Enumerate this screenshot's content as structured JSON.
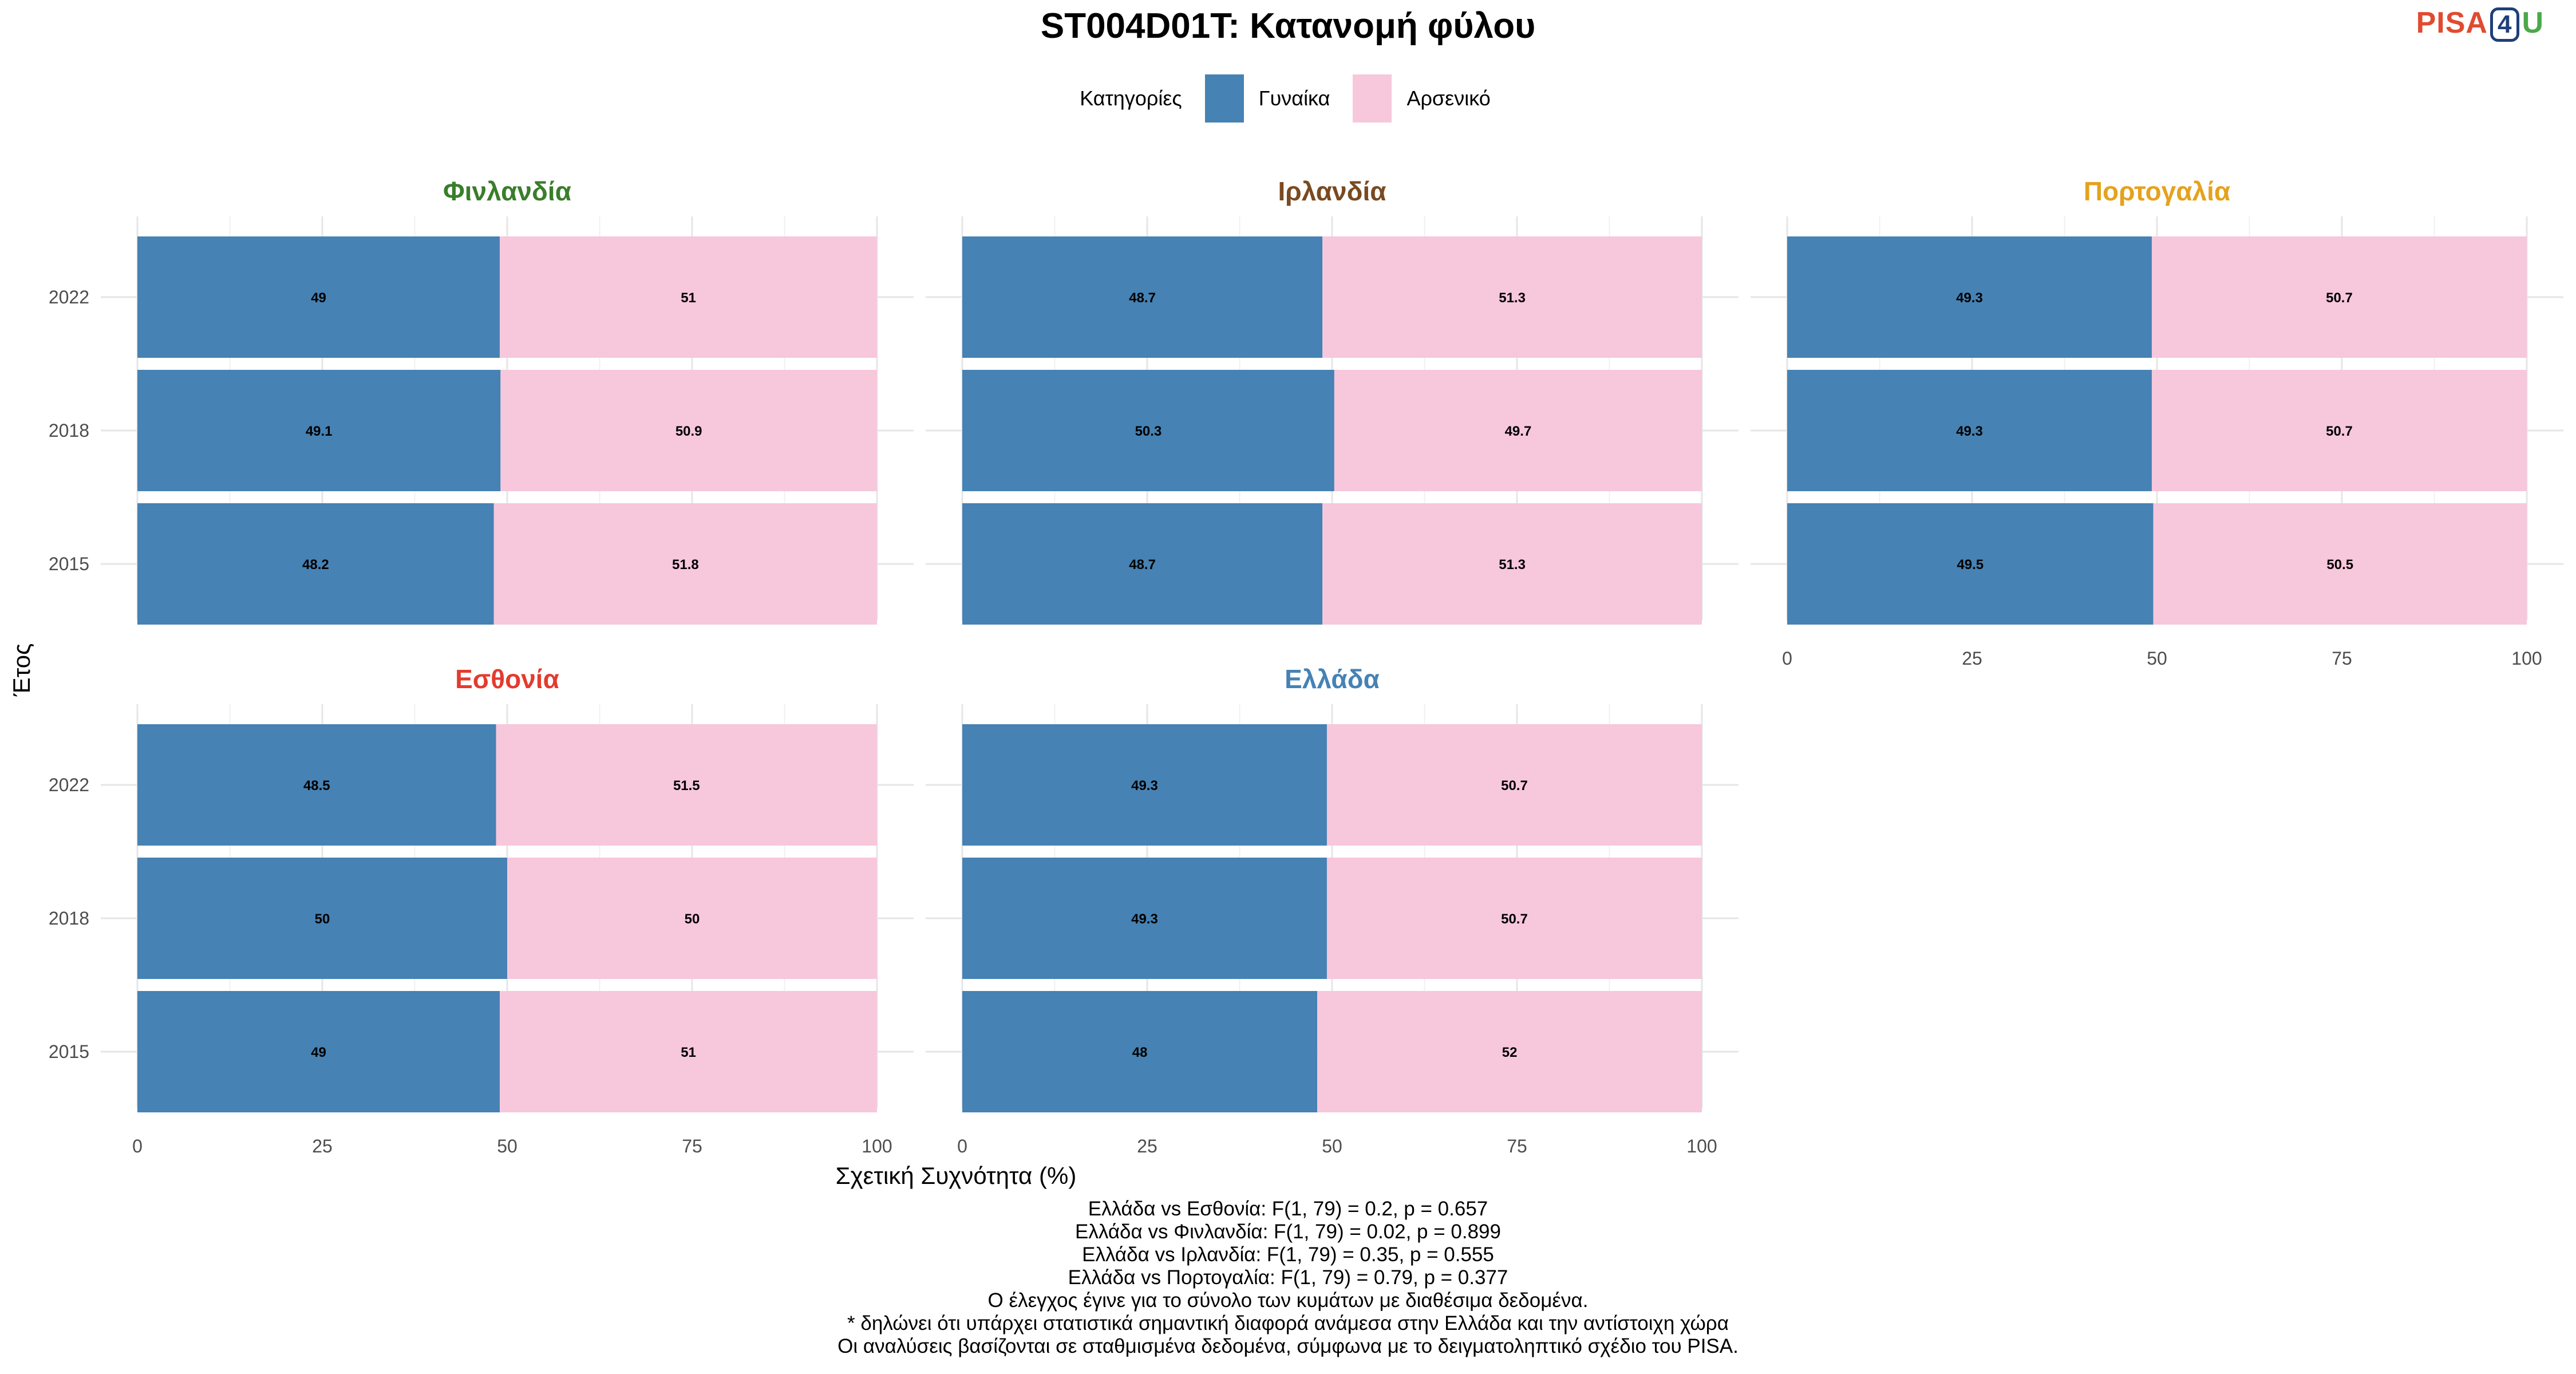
{
  "title": "ST004D01T: Κατανομή φύλου",
  "logo": {
    "part1": "PISA",
    "part2": "4",
    "part3": "U"
  },
  "legend": {
    "title": "Κατηγορίες"
  },
  "colors": {
    "female": "#4682b4",
    "male": "#f7c7dc"
  },
  "chart_data": {
    "type": "bar",
    "orientation": "horizontal",
    "stacked": true,
    "xlabel": "Σχετική Συχνότητα (%)",
    "ylabel": "Έτος",
    "xlim": [
      0,
      100
    ],
    "xticks": [
      0,
      25,
      50,
      75,
      100
    ],
    "categories": [
      "2022",
      "2018",
      "2015"
    ],
    "series_names": [
      "Γυναίκα",
      "Αρσενικό"
    ],
    "legend_position": "top",
    "grid": true,
    "panels": [
      {
        "name": "Φινλανδία",
        "color": "#3a7d2b",
        "series": [
          {
            "name": "Γυναίκα",
            "values": [
              49,
              49.1,
              48.2
            ]
          },
          {
            "name": "Αρσενικό",
            "values": [
              51,
              50.9,
              51.8
            ]
          }
        ]
      },
      {
        "name": "Ιρλανδία",
        "color": "#7a4a20",
        "series": [
          {
            "name": "Γυναίκα",
            "values": [
              48.7,
              50.3,
              48.7
            ]
          },
          {
            "name": "Αρσενικό",
            "values": [
              51.3,
              49.7,
              51.3
            ]
          }
        ]
      },
      {
        "name": "Πορτογαλία",
        "color": "#e5a21d",
        "series": [
          {
            "name": "Γυναίκα",
            "values": [
              49.3,
              49.3,
              49.5
            ]
          },
          {
            "name": "Αρσενικό",
            "values": [
              50.7,
              50.7,
              50.5
            ]
          }
        ]
      },
      {
        "name": "Εσθονία",
        "color": "#e33b2e",
        "series": [
          {
            "name": "Γυναίκα",
            "values": [
              48.5,
              50,
              49
            ]
          },
          {
            "name": "Αρσενικό",
            "values": [
              51.5,
              50,
              51
            ]
          }
        ]
      },
      {
        "name": "Ελλάδα",
        "color": "#4682b4",
        "series": [
          {
            "name": "Γυναίκα",
            "values": [
              49.3,
              49.3,
              48
            ]
          },
          {
            "name": "Αρσενικό",
            "values": [
              50.7,
              50.7,
              52
            ]
          }
        ]
      }
    ]
  },
  "caption": [
    "Ελλάδα vs Εσθονία: F(1, 79) = 0.2, p = 0.657",
    "Ελλάδα vs Φινλανδία: F(1, 79) = 0.02, p = 0.899",
    "Ελλάδα vs Ιρλανδία: F(1, 79) = 0.35, p = 0.555",
    "Ελλάδα vs Πορτογαλία: F(1, 79) = 0.79, p = 0.377",
    "Ο έλεγχος έγινε για το σύνολο των κυμάτων με διαθέσιμα δεδομένα.",
    "* δηλώνει ότι υπάρχει στατιστικά σημαντική διαφορά ανάμεσα στην Ελλάδα και την αντίστοιχη χώρα",
    "Οι αναλύσεις βασίζονται σε σταθμισμένα δεδομένα, σύμφωνα με το δειγματοληπτικό σχέδιο του PISA."
  ]
}
